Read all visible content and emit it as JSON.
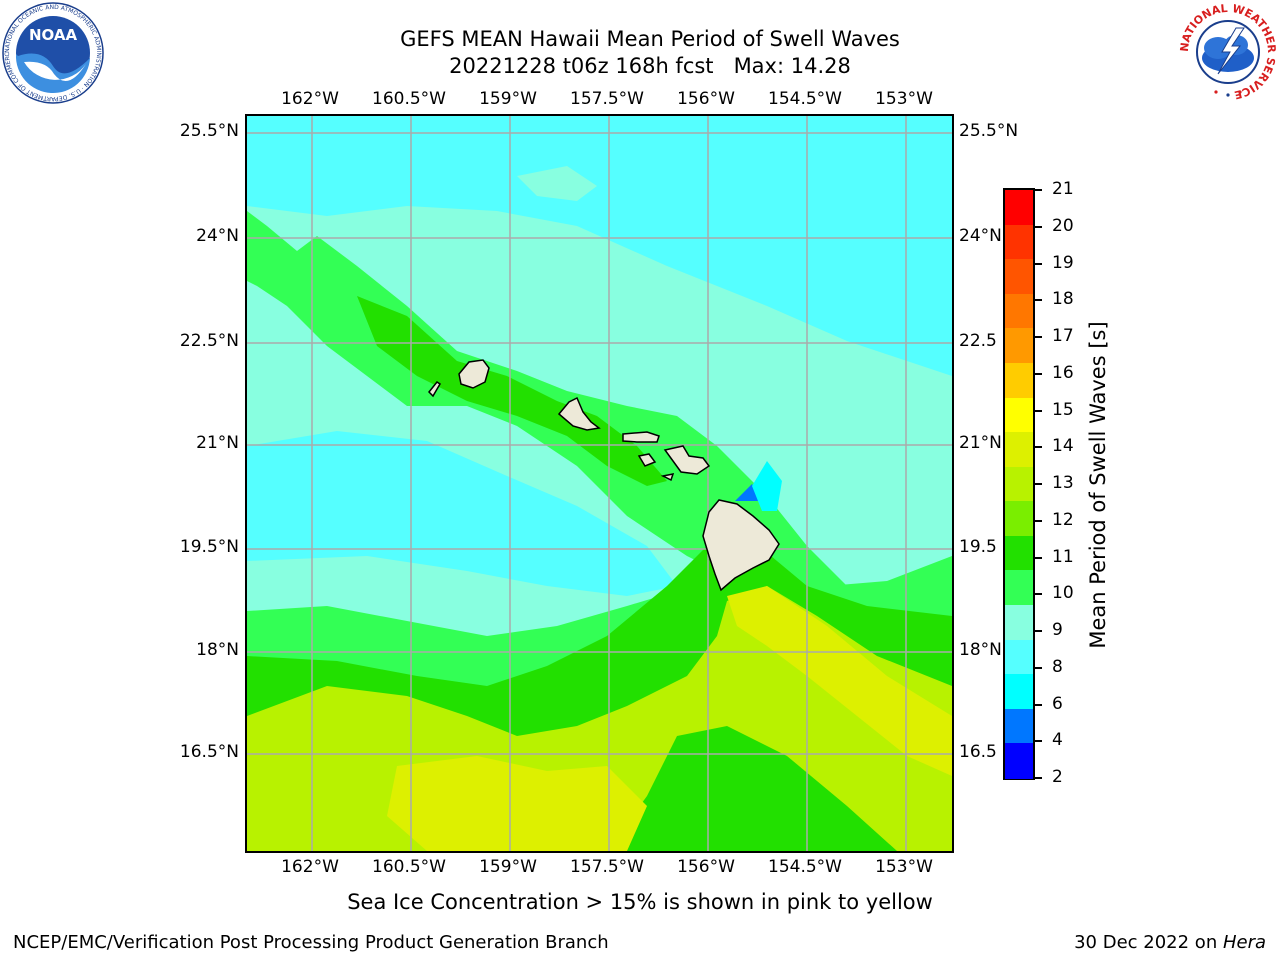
{
  "title": {
    "line1": "GEFS MEAN Hawaii Mean Period of Swell Waves",
    "line2": "20221228 t06z 168h fcst   Max: 14.28"
  },
  "logos": {
    "noaa_text": "NOAA",
    "noaa_ring": "NATIONAL OCEANIC AND ATMOSPHERIC ADMINISTRATION · U.S. DEPARTMENT OF COMMERCE ·",
    "nws_ring": "NATIONAL WEATHER SERVICE"
  },
  "map": {
    "lon_ticks": [
      "162°W",
      "160.5°W",
      "159°W",
      "157.5°W",
      "156°W",
      "154.5°W",
      "153°W"
    ],
    "lat_ticks_left": [
      "25.5°N",
      "24°N",
      "22.5°N",
      "21°N",
      "19.5°N",
      "18°N",
      "16.5°N"
    ],
    "lat_ticks_right": [
      "25.5°N",
      "24°N",
      "22.5",
      "21°N",
      "19.5",
      "18°N",
      "16.5"
    ],
    "colors": {
      "land": "#ede9d8",
      "coast": "#000000",
      "grid": "#aaaaaa"
    }
  },
  "colorbar": {
    "label": "Mean Period of Swell Waves [s]",
    "tick_labels": [
      "21",
      "20",
      "19",
      "18",
      "17",
      "16",
      "15",
      "14",
      "13",
      "12",
      "11",
      "10",
      "9",
      "8",
      "6",
      "4",
      "2"
    ],
    "colors_top_to_bottom": [
      "#ff0000",
      "#ff3300",
      "#ff5500",
      "#ff7700",
      "#ff9900",
      "#ffcc00",
      "#ffff00",
      "#ddf000",
      "#b8f200",
      "#7aee00",
      "#22e000",
      "#33ff55",
      "#88ffe0",
      "#55ffff",
      "#00ffff",
      "#0077ff",
      "#0000ff"
    ]
  },
  "footnote": "Sea Ice Concentration > 15% is shown in pink to yellow",
  "credit": "NCEP/EMC/Verification Post Processing Product Generation Branch",
  "date": {
    "text": "30 Dec 2022 on ",
    "host": "Hera"
  }
}
